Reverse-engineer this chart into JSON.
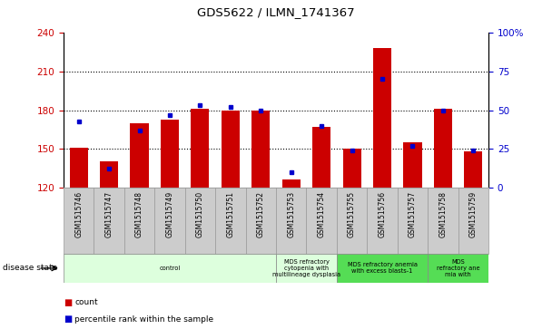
{
  "title": "GDS5622 / ILMN_1741367",
  "samples": [
    "GSM1515746",
    "GSM1515747",
    "GSM1515748",
    "GSM1515749",
    "GSM1515750",
    "GSM1515751",
    "GSM1515752",
    "GSM1515753",
    "GSM1515754",
    "GSM1515755",
    "GSM1515756",
    "GSM1515757",
    "GSM1515758",
    "GSM1515759"
  ],
  "counts": [
    151,
    140,
    170,
    173,
    181,
    180,
    180,
    126,
    167,
    150,
    228,
    155,
    181,
    148
  ],
  "percentile_ranks": [
    43,
    12,
    37,
    47,
    53,
    52,
    50,
    10,
    40,
    24,
    70,
    27,
    50,
    24
  ],
  "y_min": 120,
  "y_max": 240,
  "y_ticks_left": [
    120,
    150,
    180,
    210,
    240
  ],
  "y_ticks_right": [
    0,
    25,
    50,
    75,
    100
  ],
  "bar_color": "#cc0000",
  "dot_color": "#0000cc",
  "bar_width": 0.6,
  "groups": [
    {
      "label": "control",
      "start": 0,
      "end": 7,
      "color": "#ddffdd"
    },
    {
      "label": "MDS refractory\ncytopenia with\nmultilineage dysplasia",
      "start": 7,
      "end": 9,
      "color": "#ddffdd"
    },
    {
      "label": "MDS refractory anemia\nwith excess blasts-1",
      "start": 9,
      "end": 12,
      "color": "#55dd55"
    },
    {
      "label": "MDS\nrefractory ane\nmia with",
      "start": 12,
      "end": 14,
      "color": "#55dd55"
    }
  ],
  "tick_label_color_left": "#cc0000",
  "tick_label_color_right": "#0000cc",
  "grid_yticks": [
    150,
    180,
    210
  ],
  "sample_box_color": "#cccccc",
  "sample_box_edge": "#999999"
}
